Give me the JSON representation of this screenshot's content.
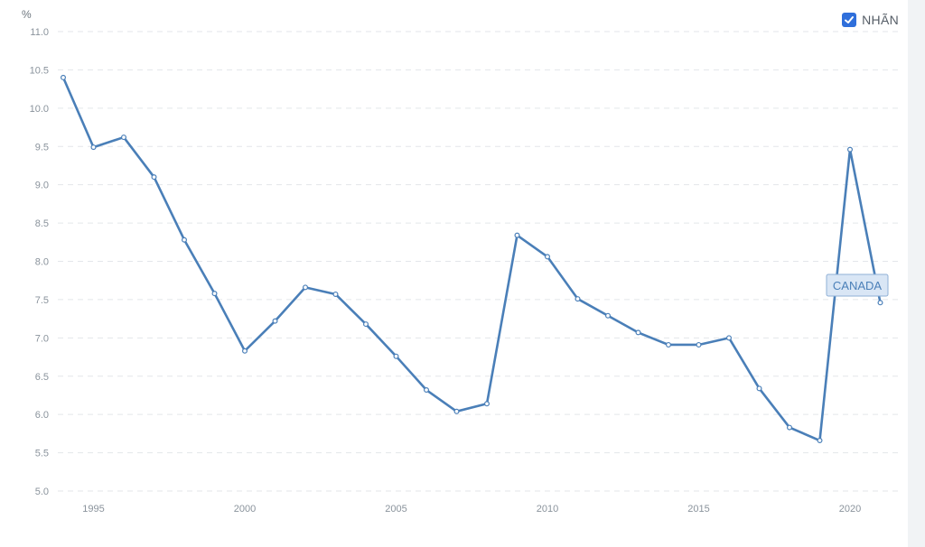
{
  "legend": {
    "label": "NHÃN",
    "checked": true
  },
  "series_flag": "CANADA",
  "chart_data": {
    "type": "line",
    "unit": "%",
    "color": "#4a7fb8",
    "x": [
      1994,
      1995,
      1996,
      1997,
      1998,
      1999,
      2000,
      2001,
      2002,
      2003,
      2004,
      2005,
      2006,
      2007,
      2008,
      2009,
      2010,
      2011,
      2012,
      2013,
      2014,
      2015,
      2016,
      2017,
      2018,
      2019,
      2020,
      2021
    ],
    "series": [
      {
        "values": [
          10.4,
          9.49,
          9.62,
          9.1,
          8.28,
          7.58,
          6.83,
          7.22,
          7.66,
          7.57,
          7.18,
          6.76,
          6.32,
          6.04,
          6.14,
          8.34,
          8.06,
          7.51,
          7.29,
          7.07,
          6.91,
          6.91,
          7.0,
          6.34,
          5.83,
          5.66,
          9.46,
          7.46
        ]
      }
    ],
    "xticks": [
      1995,
      2000,
      2005,
      2010,
      2015,
      2020
    ],
    "yticks": [
      5.0,
      5.5,
      6.0,
      6.5,
      7.0,
      7.5,
      8.0,
      8.5,
      9.0,
      9.5,
      10.0,
      10.5,
      11.0
    ],
    "ylim": [
      5.0,
      11.0
    ],
    "xlim": [
      1994,
      2021
    ],
    "grid": true
  }
}
